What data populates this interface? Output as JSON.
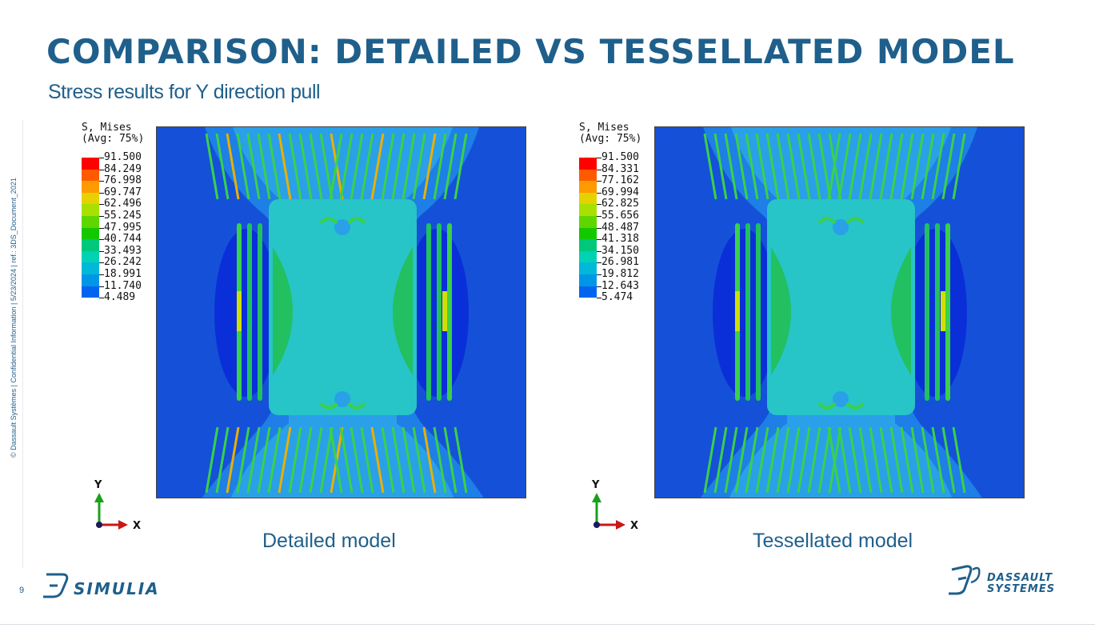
{
  "slide": {
    "title": "COMPARISON: DETAILED VS TESSELLATED MODEL",
    "subtitle": "Stress results for Y direction pull",
    "side_note": "© Dassault Systèmes | Confidential Information | 5/23/2024 | ref.: 3DS_Document_2021",
    "page_number": "9",
    "brand_left": "SIMULIA",
    "brand_right_line1": "DASSAULT",
    "brand_right_line2": "SYSTEMES",
    "accent_color": "#1f5f8b"
  },
  "panels": [
    {
      "caption": "Detailed model",
      "legend_title_1": "S, Mises",
      "legend_title_2": "(Avg: 75%)",
      "legend_values": [
        "91.500",
        "84.249",
        "76.998",
        "69.747",
        "62.496",
        "55.245",
        "47.995",
        "40.744",
        "33.493",
        "26.242",
        "18.991",
        "11.740",
        "4.489"
      ],
      "axis_y": "Y",
      "axis_x": "X"
    },
    {
      "caption": "Tessellated model",
      "legend_title_1": "S, Mises",
      "legend_title_2": "(Avg: 75%)",
      "legend_values": [
        "91.500",
        "84.331",
        "77.162",
        "69.994",
        "62.825",
        "55.656",
        "48.487",
        "41.318",
        "34.150",
        "26.981",
        "19.812",
        "12.643",
        "5.474"
      ],
      "axis_y": "Y",
      "axis_x": "X"
    }
  ],
  "legend_colors": [
    "#ff0000",
    "#ff5a00",
    "#ff9a00",
    "#e6d200",
    "#a8e000",
    "#5fd600",
    "#14c800",
    "#00c87a",
    "#00d2b4",
    "#00b8d8",
    "#0096e6",
    "#0064f0",
    "#0000e8"
  ]
}
